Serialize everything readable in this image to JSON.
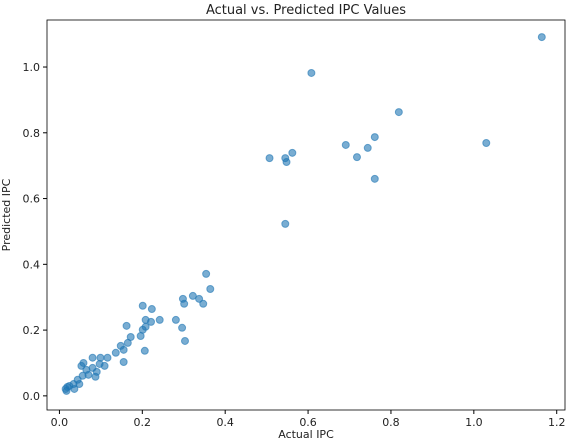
{
  "chart_data": {
    "type": "scatter",
    "title": "Actual vs. Predicted IPC Values",
    "x_label": "Actual IPC",
    "y_label": "Predicted IPC",
    "series": [
      {
        "color": "#1f77b4",
        "x": [
          1.164,
          0.608,
          0.819,
          0.761,
          1.03,
          0.691,
          0.744,
          0.718,
          0.562,
          0.507,
          0.545,
          0.548,
          0.761,
          0.545,
          0.354,
          0.364,
          0.298,
          0.322,
          0.337,
          0.347,
          0.301,
          0.281,
          0.242,
          0.201,
          0.223,
          0.208,
          0.221,
          0.208,
          0.201,
          0.296,
          0.303,
          0.162,
          0.196,
          0.206,
          0.172,
          0.165,
          0.148,
          0.155,
          0.136,
          0.155,
          0.116,
          0.099,
          0.08,
          0.097,
          0.109,
          0.09,
          0.058,
          0.065,
          0.08,
          0.07,
          0.056,
          0.087,
          0.053,
          0.048,
          0.044,
          0.034,
          0.024,
          0.019,
          0.015,
          0.017,
          0.036
        ],
        "values": [
          1.091,
          0.982,
          0.863,
          0.787,
          0.769,
          0.763,
          0.754,
          0.726,
          0.739,
          0.723,
          0.723,
          0.711,
          0.66,
          0.523,
          0.371,
          0.325,
          0.295,
          0.304,
          0.295,
          0.28,
          0.28,
          0.231,
          0.231,
          0.274,
          0.264,
          0.231,
          0.225,
          0.21,
          0.201,
          0.207,
          0.167,
          0.213,
          0.182,
          0.137,
          0.179,
          0.161,
          0.152,
          0.14,
          0.131,
          0.103,
          0.116,
          0.116,
          0.116,
          0.097,
          0.091,
          0.073,
          0.1,
          0.079,
          0.085,
          0.064,
          0.061,
          0.058,
          0.091,
          0.036,
          0.049,
          0.036,
          0.03,
          0.027,
          0.021,
          0.015,
          0.021
        ]
      }
    ],
    "xlim": [
      -0.03,
      1.22
    ],
    "ylim": [
      -0.043,
      1.143
    ],
    "xticks": [
      {
        "value": 0,
        "label": "0.0"
      },
      0.2,
      0.4,
      0.6,
      0.8,
      {
        "value": 1,
        "label": "1.0"
      },
      1.2
    ],
    "yticks": [
      {
        "value": 0,
        "label": "0.0"
      },
      0.2,
      0.4,
      0.6,
      0.8,
      {
        "value": 1,
        "label": "1.0"
      }
    ]
  }
}
